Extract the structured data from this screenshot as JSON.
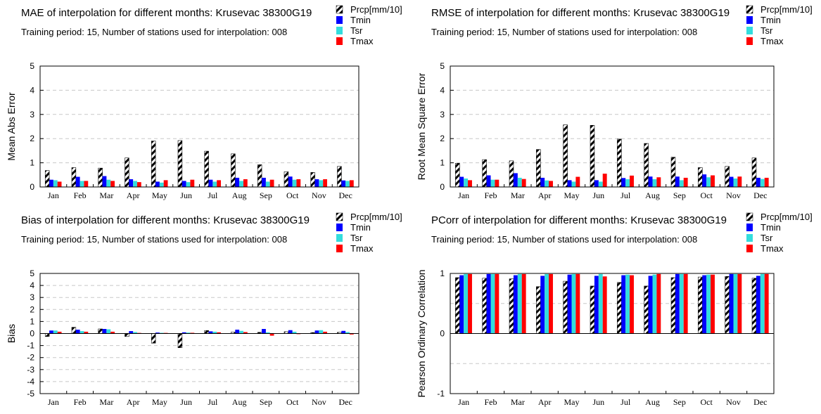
{
  "chart_data": [
    {
      "type": "bar",
      "title": "MAE of interpolation for different months: Krusevac  38300G19",
      "subtitle": "Training period: 15, Number of stations used for interpolation: 008",
      "ylabel": "Mean Abs Error",
      "ylim": [
        0,
        5
      ],
      "yticks": [
        "0",
        "1",
        "2",
        "3",
        "4",
        "5"
      ],
      "categories": [
        "Jan",
        "Feb",
        "Mar",
        "Apr",
        "May",
        "Jun",
        "Jul",
        "Aug",
        "Sep",
        "Oct",
        "Nov",
        "Dec"
      ],
      "grid": "horizontal dashed",
      "legend_position": "top-right",
      "series": [
        {
          "name": "Prcp[mm/10]",
          "values": [
            0.68,
            0.8,
            0.78,
            1.2,
            1.9,
            1.92,
            1.48,
            1.37,
            0.92,
            0.63,
            0.6,
            0.85
          ]
        },
        {
          "name": "Tmin",
          "values": [
            0.3,
            0.42,
            0.45,
            0.32,
            0.22,
            0.25,
            0.3,
            0.38,
            0.38,
            0.43,
            0.32,
            0.27
          ]
        },
        {
          "name": "Tsr",
          "values": [
            0.28,
            0.25,
            0.3,
            0.25,
            0.18,
            0.2,
            0.22,
            0.25,
            0.22,
            0.3,
            0.28,
            0.25
          ]
        },
        {
          "name": "Tmax",
          "values": [
            0.22,
            0.25,
            0.25,
            0.2,
            0.28,
            0.3,
            0.28,
            0.32,
            0.3,
            0.32,
            0.32,
            0.28
          ]
        }
      ]
    },
    {
      "type": "bar",
      "title": "RMSE of interpolation for different months: Krusevac  38300G19",
      "subtitle": "Training period: 15, Number of stations used for interpolation: 008",
      "ylabel": "Root Mean Square Error",
      "ylim": [
        0,
        5
      ],
      "yticks": [
        "0",
        "1",
        "2",
        "3",
        "4",
        "5"
      ],
      "categories": [
        "Jan",
        "Feb",
        "Mar",
        "Apr",
        "May",
        "Jun",
        "Jul",
        "Aug",
        "Sep",
        "Oct",
        "Nov",
        "Dec"
      ],
      "grid": "horizontal dashed",
      "legend_position": "top-right",
      "series": [
        {
          "name": "Prcp[mm/10]",
          "values": [
            0.98,
            1.13,
            1.08,
            1.55,
            2.57,
            2.55,
            1.98,
            1.8,
            1.23,
            0.8,
            0.85,
            1.2
          ]
        },
        {
          "name": "Tmin",
          "values": [
            0.42,
            0.48,
            0.57,
            0.38,
            0.28,
            0.28,
            0.37,
            0.43,
            0.43,
            0.52,
            0.42,
            0.38
          ]
        },
        {
          "name": "Tsr",
          "values": [
            0.35,
            0.3,
            0.38,
            0.27,
            0.22,
            0.22,
            0.32,
            0.32,
            0.28,
            0.4,
            0.35,
            0.33
          ]
        },
        {
          "name": "Tmax",
          "values": [
            0.28,
            0.3,
            0.33,
            0.25,
            0.42,
            0.55,
            0.47,
            0.4,
            0.38,
            0.48,
            0.43,
            0.38
          ]
        }
      ]
    },
    {
      "type": "bar",
      "title": "Bias of interpolation for different months: Krusevac  38300G19",
      "subtitle": "Training period: 15, Number of stations used for interpolation: 008",
      "ylabel": "Bias",
      "ylim": [
        -5,
        5
      ],
      "yticks": [
        "-5",
        "-4",
        "-3",
        "-2",
        "-1",
        "0",
        "1",
        "2",
        "3",
        "4",
        "5"
      ],
      "categories": [
        "Jan",
        "Feb",
        "Mar",
        "Apr",
        "May",
        "Jun",
        "Jul",
        "Aug",
        "Sep",
        "Oct",
        "Nov",
        "Dec"
      ],
      "grid": "horizontal dashed",
      "legend_position": "top-right",
      "series": [
        {
          "name": "Prcp[mm/10]",
          "values": [
            -0.25,
            0.52,
            0.38,
            -0.25,
            -0.8,
            -1.18,
            0.25,
            0.12,
            0.1,
            0.15,
            0.08,
            0.1
          ]
        },
        {
          "name": "Tmin",
          "values": [
            0.25,
            0.32,
            0.38,
            0.2,
            0.08,
            0.1,
            0.18,
            0.32,
            0.38,
            0.28,
            0.25,
            0.22
          ]
        },
        {
          "name": "Tsr",
          "values": [
            0.25,
            0.2,
            0.35,
            0.12,
            0.06,
            0.08,
            0.15,
            0.22,
            0.1,
            0.15,
            0.28,
            0.12
          ]
        },
        {
          "name": "Tmax",
          "values": [
            0.15,
            0.15,
            0.15,
            0.05,
            0.05,
            0.06,
            0.1,
            0.12,
            -0.18,
            -0.05,
            0.15,
            -0.08
          ]
        }
      ]
    },
    {
      "type": "bar",
      "title": "PCorr of interpolation for different months: Krusevac  38300G19",
      "subtitle": "Training period: 15, Number of stations used for interpolation: 008",
      "ylabel": "Pearson Ordinary Correlation",
      "ylim": [
        -1,
        1
      ],
      "yticks": [
        "-1",
        "0",
        "1"
      ],
      "categories": [
        "Jan",
        "Feb",
        "Mar",
        "Apr",
        "May",
        "Jun",
        "Jul",
        "Aug",
        "Sep",
        "Oct",
        "Nov",
        "Dec"
      ],
      "grid": "horizontal dashed",
      "legend_position": "top-right",
      "series": [
        {
          "name": "Prcp[mm/10]",
          "values": [
            0.93,
            0.92,
            0.91,
            0.78,
            0.87,
            0.79,
            0.85,
            0.79,
            0.93,
            0.94,
            0.95,
            0.92
          ]
        },
        {
          "name": "Tmin",
          "values": [
            0.97,
            0.99,
            0.97,
            0.96,
            0.98,
            0.96,
            0.97,
            0.96,
            0.99,
            0.97,
            0.99,
            0.96
          ]
        },
        {
          "name": "Tsr",
          "values": [
            0.99,
            0.99,
            0.99,
            0.99,
            0.99,
            0.99,
            0.98,
            0.98,
            0.99,
            0.98,
            0.99,
            0.99
          ]
        },
        {
          "name": "Tmax",
          "values": [
            0.99,
            0.99,
            0.99,
            0.99,
            0.99,
            0.95,
            0.97,
            0.99,
            0.99,
            0.98,
            0.99,
            0.99
          ]
        }
      ]
    }
  ],
  "colors": {
    "Prcp[mm/10]": "#000000",
    "Tmin": "#0000ff",
    "Tsr": "#33dddd",
    "Tmax": "#ff0000",
    "grid": "#c8c8c8"
  }
}
